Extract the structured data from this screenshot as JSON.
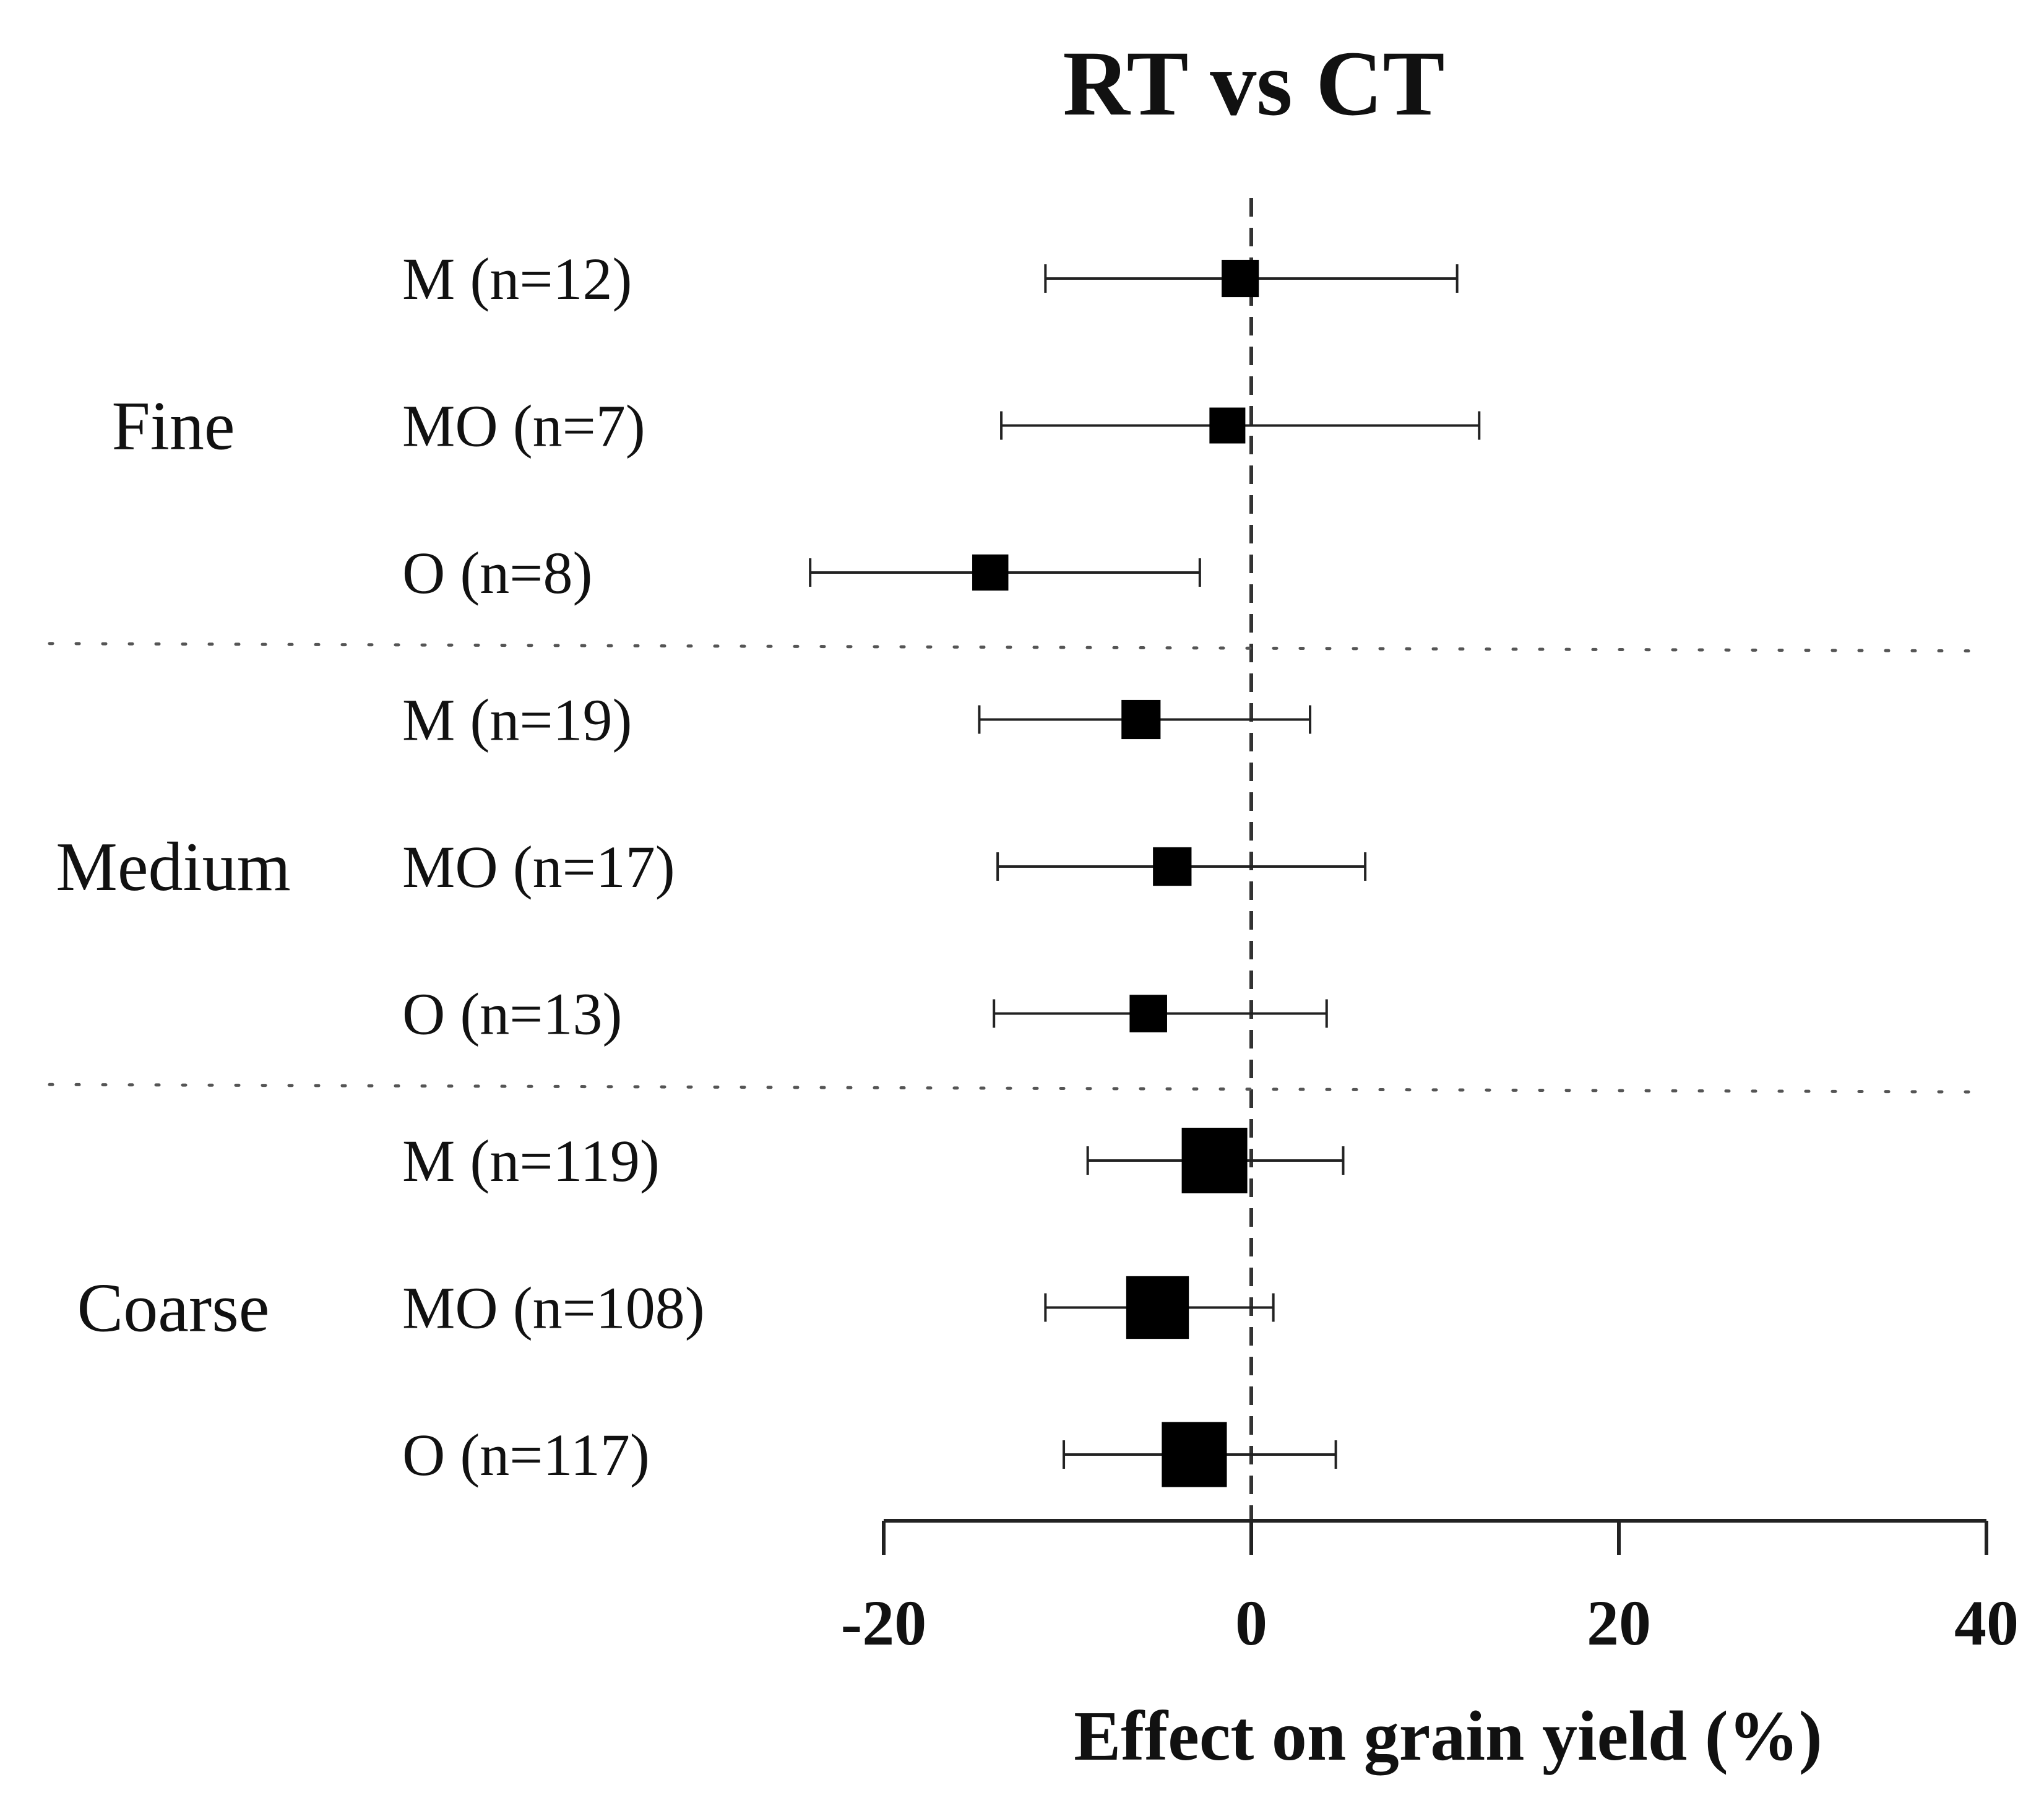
{
  "chart_data": {
    "type": "forest",
    "title": "RT vs CT",
    "xlabel": "Effect on grain yield (%)",
    "ylabel": "",
    "xlim": [
      -20,
      40
    ],
    "xticks": [
      -20,
      0,
      20,
      40
    ],
    "reference_line": 0,
    "groups": [
      {
        "name": "Fine",
        "rows": [
          {
            "label": "M (n=12)",
            "n": 12,
            "estimate": -0.6,
            "lower": -11.2,
            "upper": 11.2
          },
          {
            "label": "MO (n=7)",
            "n": 7,
            "estimate": -1.3,
            "lower": -13.6,
            "upper": 12.4
          },
          {
            "label": "O (n=8)",
            "n": 8,
            "estimate": -14.2,
            "lower": -24.0,
            "upper": -2.8
          }
        ]
      },
      {
        "name": "Medium",
        "rows": [
          {
            "label": "M (n=19)",
            "n": 19,
            "estimate": -6.0,
            "lower": -14.8,
            "upper": 3.2
          },
          {
            "label": "MO (n=17)",
            "n": 17,
            "estimate": -4.3,
            "lower": -13.8,
            "upper": 6.2
          },
          {
            "label": "O (n=13)",
            "n": 13,
            "estimate": -5.6,
            "lower": -14.0,
            "upper": 4.1
          }
        ]
      },
      {
        "name": "Coarse",
        "rows": [
          {
            "label": "M (n=119)",
            "n": 119,
            "estimate": -2.0,
            "lower": -8.9,
            "upper": 5.0
          },
          {
            "label": "MO (n=108)",
            "n": 108,
            "estimate": -5.1,
            "lower": -11.2,
            "upper": 1.2
          },
          {
            "label": "O (n=117)",
            "n": 117,
            "estimate": -3.1,
            "lower": -10.2,
            "upper": 4.6
          }
        ]
      }
    ]
  }
}
